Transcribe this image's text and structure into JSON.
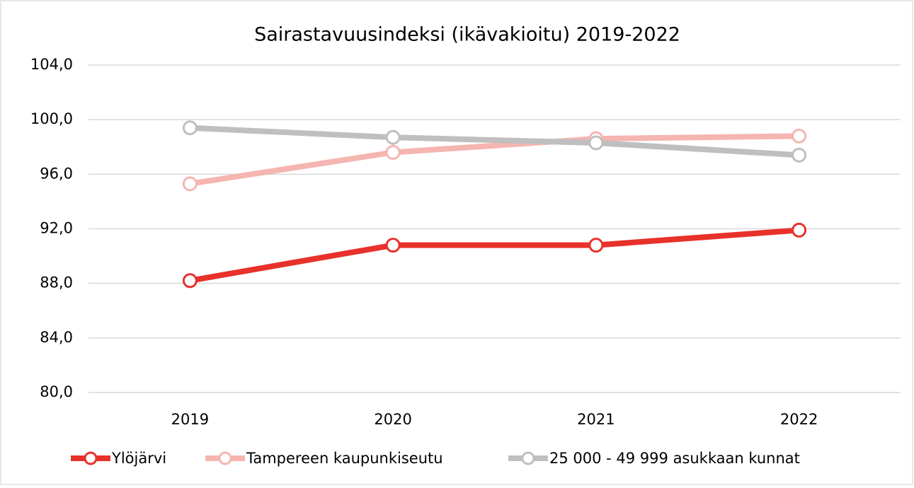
{
  "chart_data": {
    "type": "line",
    "title": "Sairastavuusindeksi (ikävakioitu) 2019-2022",
    "categories": [
      "2019",
      "2020",
      "2021",
      "2022"
    ],
    "series": [
      {
        "name": "Ylöjärvi",
        "color": "#e8312b",
        "values": [
          88.2,
          90.8,
          90.8,
          91.9
        ]
      },
      {
        "name": "Tampereen kaupunkiseutu",
        "color": "#f5b5b1",
        "values": [
          95.3,
          97.6,
          98.6,
          98.8
        ]
      },
      {
        "name": "25 000 - 49 999 asukkaan kunnat",
        "color": "#bfbfbf",
        "values": [
          99.4,
          98.7,
          98.3,
          97.4
        ]
      }
    ],
    "ylim": [
      80,
      104
    ],
    "yticks": [
      {
        "value": 80,
        "label": "80,0"
      },
      {
        "value": 84,
        "label": "84,0"
      },
      {
        "value": 88,
        "label": "88,0"
      },
      {
        "value": 92,
        "label": "92,0"
      },
      {
        "value": 96,
        "label": "96,0"
      },
      {
        "value": 100,
        "label": "100,0"
      },
      {
        "value": 104,
        "label": "104,0"
      }
    ],
    "grid": true,
    "legend": "bottom"
  }
}
